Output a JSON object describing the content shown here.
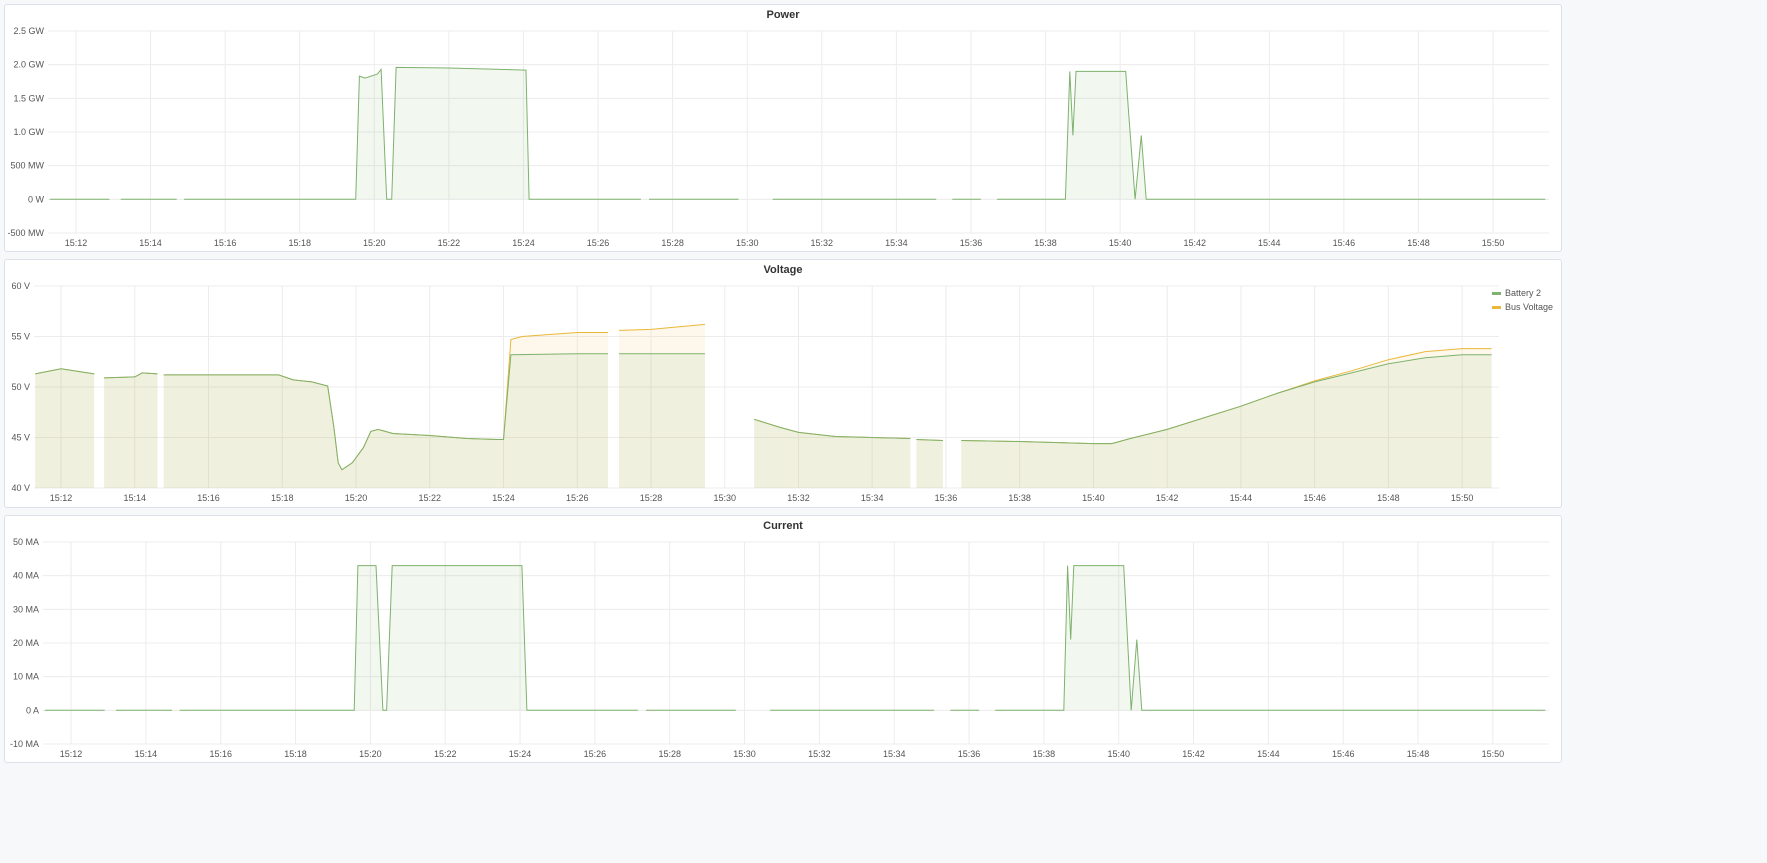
{
  "colors": {
    "green": "#7eb26d",
    "yellow": "#eab839"
  },
  "x_ticks": [
    "15:12",
    "15:14",
    "15:16",
    "15:18",
    "15:20",
    "15:22",
    "15:24",
    "15:26",
    "15:28",
    "15:30",
    "15:32",
    "15:34",
    "15:36",
    "15:38",
    "15:40",
    "15:42",
    "15:44",
    "15:46",
    "15:48",
    "15:50"
  ],
  "panels": [
    {
      "title": "Power",
      "chart_data": {
        "type": "area",
        "title": "Power",
        "xlim": [
          "15:11:15",
          "15:51:30"
        ],
        "ylim": [
          -0.5,
          2.5
        ],
        "y_ticks": [
          {
            "v": 2.5,
            "label": "2.5 GW"
          },
          {
            "v": 2.0,
            "label": "2.0 GW"
          },
          {
            "v": 1.5,
            "label": "1.5 GW"
          },
          {
            "v": 1.0,
            "label": "1.0 GW"
          },
          {
            "v": 0.5,
            "label": "500 MW"
          },
          {
            "v": 0,
            "label": "0 W"
          },
          {
            "v": -0.5,
            "label": "-500 MW"
          }
        ],
        "grid": true,
        "series": [
          {
            "color": "#7eb26d",
            "points": [
              [
                "15:11:18",
                0
              ],
              [
                "15:12:54",
                0
              ],
              null,
              [
                "15:13:12",
                0
              ],
              [
                "15:14:42",
                0
              ],
              null,
              [
                "15:14:54",
                0
              ],
              [
                "15:19:30",
                0
              ],
              [
                "15:19:36",
                1.83
              ],
              [
                "15:19:45",
                1.8
              ],
              [
                "15:20:05",
                1.86
              ],
              [
                "15:20:11",
                1.93
              ],
              [
                "15:20:20",
                0
              ],
              [
                "15:20:28",
                0
              ],
              [
                "15:20:35",
                1.96
              ],
              [
                "15:22:00",
                1.95
              ],
              [
                "15:24:04",
                1.92
              ],
              [
                "15:24:09",
                0
              ],
              [
                "15:27:09",
                0
              ],
              null,
              [
                "15:27:22",
                0
              ],
              [
                "15:29:46",
                0
              ],
              null,
              [
                "15:30:41",
                0
              ],
              [
                "15:35:04",
                0
              ],
              null,
              [
                "15:35:30",
                0
              ],
              [
                "15:36:16",
                0
              ],
              null,
              [
                "15:36:42",
                0
              ],
              [
                "15:38:32",
                0
              ],
              [
                "15:38:39",
                1.9
              ],
              [
                "15:38:44",
                0.95
              ],
              [
                "15:38:49",
                1.9
              ],
              [
                "15:40:09",
                1.9
              ],
              [
                "15:40:14",
                1.25
              ],
              [
                "15:40:24",
                0
              ],
              [
                "15:40:34",
                0.95
              ],
              [
                "15:40:42",
                0
              ],
              [
                "15:51:24",
                0
              ]
            ]
          }
        ]
      }
    },
    {
      "title": "Voltage",
      "chart_data": {
        "type": "area",
        "title": "Voltage",
        "xlim": [
          "15:11:16",
          "15:51:00"
        ],
        "ylim": [
          40,
          60
        ],
        "y_ticks": [
          {
            "v": 60,
            "label": "60 V"
          },
          {
            "v": 55,
            "label": "55 V"
          },
          {
            "v": 50,
            "label": "50 V"
          },
          {
            "v": 45,
            "label": "45 V"
          },
          {
            "v": 40,
            "label": "40 V"
          }
        ],
        "grid": true,
        "legend": "right",
        "series": [
          {
            "name": "Bus Voltage",
            "color": "#eab839",
            "points": [
              [
                "15:11:18",
                51.3
              ],
              [
                "15:12:00",
                51.8
              ],
              [
                "15:12:54",
                51.3
              ],
              null,
              [
                "15:13:10",
                50.9
              ],
              [
                "15:14:00",
                51.0
              ],
              [
                "15:14:12",
                51.4
              ],
              [
                "15:14:37",
                51.3
              ],
              null,
              [
                "15:14:47",
                51.2
              ],
              [
                "15:17:54",
                51.2
              ],
              [
                "15:18:18",
                50.7
              ],
              [
                "15:18:48",
                50.5
              ],
              [
                "15:19:14",
                50.1
              ],
              [
                "15:19:24",
                46.0
              ],
              [
                "15:19:31",
                42.5
              ],
              [
                "15:19:37",
                41.8
              ],
              [
                "15:19:54",
                42.5
              ],
              [
                "15:20:12",
                44.0
              ],
              [
                "15:20:24",
                45.6
              ],
              [
                "15:20:36",
                45.8
              ],
              [
                "15:21:00",
                45.4
              ],
              [
                "15:22:00",
                45.2
              ],
              [
                "15:23:00",
                44.9
              ],
              [
                "15:23:50",
                44.8
              ],
              [
                "15:24:00",
                44.8
              ],
              [
                "15:24:12",
                54.7
              ],
              [
                "15:24:30",
                55.0
              ],
              [
                "15:26:00",
                55.4
              ],
              [
                "15:26:50",
                55.4
              ],
              null,
              [
                "15:27:08",
                55.6
              ],
              [
                "15:28:00",
                55.7
              ],
              [
                "15:29:28",
                56.2
              ],
              null,
              [
                "15:30:48",
                46.8
              ],
              [
                "15:31:30",
                46.0
              ],
              [
                "15:32:00",
                45.5
              ],
              [
                "15:33:00",
                45.1
              ],
              [
                "15:35:02",
                44.9
              ],
              null,
              [
                "15:35:12",
                44.8
              ],
              [
                "15:35:55",
                44.7
              ],
              null,
              [
                "15:36:25",
                44.7
              ],
              [
                "15:38:00",
                44.6
              ],
              [
                "15:40:00",
                44.4
              ],
              [
                "15:40:30",
                44.4
              ],
              [
                "15:41:00",
                44.9
              ],
              [
                "15:42:00",
                45.8
              ],
              [
                "15:44:00",
                48.1
              ],
              [
                "15:45:00",
                49.4
              ],
              [
                "15:46:00",
                50.6
              ],
              [
                "15:47:00",
                51.6
              ],
              [
                "15:48:00",
                52.7
              ],
              [
                "15:49:00",
                53.5
              ],
              [
                "15:50:00",
                53.8
              ],
              [
                "15:50:48",
                53.8
              ]
            ]
          },
          {
            "name": "Battery 2",
            "color": "#7eb26d",
            "points": [
              [
                "15:11:18",
                51.3
              ],
              [
                "15:12:00",
                51.8
              ],
              [
                "15:12:54",
                51.3
              ],
              null,
              [
                "15:13:10",
                50.9
              ],
              [
                "15:14:00",
                51.0
              ],
              [
                "15:14:12",
                51.4
              ],
              [
                "15:14:37",
                51.3
              ],
              null,
              [
                "15:14:47",
                51.2
              ],
              [
                "15:17:54",
                51.2
              ],
              [
                "15:18:18",
                50.7
              ],
              [
                "15:18:48",
                50.5
              ],
              [
                "15:19:14",
                50.1
              ],
              [
                "15:19:24",
                46.0
              ],
              [
                "15:19:31",
                42.5
              ],
              [
                "15:19:37",
                41.8
              ],
              [
                "15:19:54",
                42.5
              ],
              [
                "15:20:12",
                44.0
              ],
              [
                "15:20:24",
                45.6
              ],
              [
                "15:20:36",
                45.8
              ],
              [
                "15:21:00",
                45.4
              ],
              [
                "15:22:00",
                45.2
              ],
              [
                "15:23:00",
                44.9
              ],
              [
                "15:23:50",
                44.8
              ],
              [
                "15:24:00",
                44.8
              ],
              [
                "15:24:12",
                53.2
              ],
              [
                "15:26:00",
                53.3
              ],
              [
                "15:26:50",
                53.3
              ],
              null,
              [
                "15:27:08",
                53.3
              ],
              [
                "15:29:28",
                53.3
              ],
              null,
              [
                "15:30:48",
                46.8
              ],
              [
                "15:31:30",
                46.0
              ],
              [
                "15:32:00",
                45.5
              ],
              [
                "15:33:00",
                45.1
              ],
              [
                "15:35:02",
                44.9
              ],
              null,
              [
                "15:35:12",
                44.8
              ],
              [
                "15:35:55",
                44.7
              ],
              null,
              [
                "15:36:25",
                44.7
              ],
              [
                "15:38:00",
                44.6
              ],
              [
                "15:40:00",
                44.4
              ],
              [
                "15:40:30",
                44.4
              ],
              [
                "15:41:00",
                44.9
              ],
              [
                "15:42:00",
                45.8
              ],
              [
                "15:44:00",
                48.1
              ],
              [
                "15:45:00",
                49.4
              ],
              [
                "15:46:00",
                50.5
              ],
              [
                "15:47:00",
                51.4
              ],
              [
                "15:48:00",
                52.3
              ],
              [
                "15:49:00",
                52.9
              ],
              [
                "15:50:00",
                53.2
              ],
              [
                "15:50:48",
                53.2
              ]
            ]
          }
        ]
      }
    },
    {
      "title": "Current",
      "chart_data": {
        "type": "area",
        "title": "Current",
        "xlim": [
          "15:11:15",
          "15:51:30"
        ],
        "ylim": [
          -10,
          50
        ],
        "y_ticks": [
          {
            "v": 50,
            "label": "50 MA"
          },
          {
            "v": 40,
            "label": "40 MA"
          },
          {
            "v": 30,
            "label": "30 MA"
          },
          {
            "v": 20,
            "label": "20 MA"
          },
          {
            "v": 10,
            "label": "10 MA"
          },
          {
            "v": 0,
            "label": "0 A"
          },
          {
            "v": -10,
            "label": "-10 MA"
          }
        ],
        "grid": true,
        "series": [
          {
            "color": "#7eb26d",
            "points": [
              [
                "15:11:18",
                0
              ],
              [
                "15:12:54",
                0
              ],
              null,
              [
                "15:13:12",
                0
              ],
              [
                "15:14:42",
                0
              ],
              null,
              [
                "15:14:54",
                0
              ],
              [
                "15:19:34",
                0
              ],
              [
                "15:19:40",
                43
              ],
              [
                "15:20:09",
                43
              ],
              [
                "15:20:20",
                0
              ],
              [
                "15:20:26",
                0
              ],
              [
                "15:20:35",
                43
              ],
              [
                "15:24:03",
                43
              ],
              [
                "15:24:11",
                0
              ],
              [
                "15:27:09",
                0
              ],
              null,
              [
                "15:27:22",
                0
              ],
              [
                "15:29:46",
                0
              ],
              null,
              [
                "15:30:41",
                0
              ],
              [
                "15:35:04",
                0
              ],
              null,
              [
                "15:35:30",
                0
              ],
              [
                "15:36:16",
                0
              ],
              null,
              [
                "15:36:42",
                0
              ],
              [
                "15:38:32",
                0
              ],
              [
                "15:38:38",
                43
              ],
              [
                "15:38:43",
                21
              ],
              [
                "15:38:48",
                43
              ],
              [
                "15:40:08",
                43
              ],
              [
                "15:40:20",
                0
              ],
              [
                "15:40:29",
                21
              ],
              [
                "15:40:37",
                0
              ],
              [
                "15:51:24",
                0
              ]
            ]
          }
        ]
      }
    }
  ]
}
